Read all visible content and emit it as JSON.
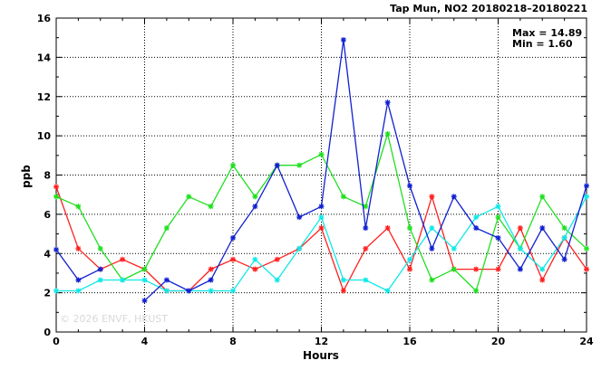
{
  "chart_data": {
    "type": "line",
    "title": "Tap Mun, NO2 20180218–20180221",
    "xlabel": "Hours",
    "ylabel": "ppb",
    "xlim": [
      0,
      24
    ],
    "ylim": [
      0,
      16
    ],
    "xticks": [
      0,
      4,
      8,
      12,
      16,
      20,
      24
    ],
    "yticks": [
      0,
      2,
      4,
      6,
      8,
      10,
      12,
      14,
      16
    ],
    "grid": true,
    "stats": {
      "max": "Max = 14.89",
      "min": "Min =  1.60"
    },
    "watermark": "© 2026 ENVF, HKUST",
    "x": [
      0,
      1,
      2,
      3,
      4,
      5,
      6,
      7,
      8,
      9,
      10,
      11,
      12,
      13,
      14,
      15,
      16,
      17,
      18,
      19,
      20,
      21,
      22,
      23,
      24
    ],
    "series": [
      {
        "color": "#ff2020",
        "values": [
          7.4,
          4.25,
          3.2,
          3.7,
          3.2,
          2.1,
          2.1,
          3.2,
          3.7,
          3.2,
          3.7,
          4.25,
          5.3,
          2.1,
          4.25,
          5.3,
          3.2,
          6.9,
          3.2,
          3.2,
          3.2,
          5.3,
          2.65,
          4.8,
          3.2
        ]
      },
      {
        "color": "#20e020",
        "values": [
          6.9,
          6.4,
          4.25,
          2.65,
          3.2,
          5.3,
          6.9,
          6.4,
          8.5,
          6.9,
          8.5,
          8.5,
          9.05,
          6.9,
          6.4,
          10.1,
          5.3,
          2.65,
          3.2,
          2.1,
          5.85,
          4.25,
          6.9,
          5.3,
          4.25
        ]
      },
      {
        "color": "#10e8e8",
        "values": [
          2.1,
          2.1,
          2.65,
          2.65,
          2.65,
          2.1,
          2.1,
          2.1,
          2.1,
          3.7,
          2.65,
          4.25,
          5.85,
          2.65,
          2.65,
          2.1,
          3.7,
          5.3,
          4.25,
          5.85,
          6.4,
          4.25,
          3.2,
          4.8,
          6.9
        ]
      },
      {
        "color": "#1020d0",
        "values": [
          4.2,
          2.65,
          3.2,
          null,
          1.6,
          2.65,
          2.1,
          2.65,
          4.8,
          6.4,
          8.5,
          5.85,
          6.4,
          14.89,
          5.3,
          11.7,
          7.45,
          4.25,
          6.9,
          5.3,
          4.8,
          3.2,
          5.3,
          3.7,
          7.45
        ]
      }
    ]
  }
}
